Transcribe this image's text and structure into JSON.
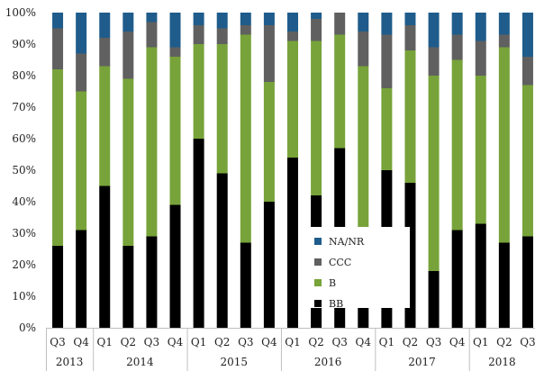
{
  "chart_data": {
    "type": "bar",
    "stacked": true,
    "title": "",
    "xlabel": "",
    "ylabel": "",
    "ylim": [
      0,
      100
    ],
    "yticks": [
      "0%",
      "10%",
      "20%",
      "30%",
      "40%",
      "50%",
      "60%",
      "70%",
      "80%",
      "90%",
      "100%"
    ],
    "categories": [
      "Q3",
      "Q4",
      "Q1",
      "Q2",
      "Q3",
      "Q4",
      "Q1",
      "Q2",
      "Q3",
      "Q4",
      "Q1",
      "Q2",
      "Q3",
      "Q4",
      "Q1",
      "Q2",
      "Q3",
      "Q4",
      "Q1",
      "Q2",
      "Q3"
    ],
    "year_groups": [
      {
        "label": "2013",
        "count": 2
      },
      {
        "label": "2014",
        "count": 4
      },
      {
        "label": "2015",
        "count": 4
      },
      {
        "label": "2016",
        "count": 4
      },
      {
        "label": "2017",
        "count": 4
      },
      {
        "label": "2018",
        "count": 3
      }
    ],
    "series": [
      {
        "name": "BB",
        "color": "#000000",
        "values": [
          26,
          31,
          45,
          26,
          29,
          39,
          60,
          49,
          27,
          40,
          54,
          42,
          57,
          30,
          50,
          46,
          18,
          31,
          33,
          27,
          29
        ]
      },
      {
        "name": "B",
        "color": "#77a33a",
        "values": [
          56,
          44,
          38,
          53,
          60,
          47,
          30,
          41,
          66,
          38,
          37,
          49,
          36,
          53,
          26,
          42,
          62,
          54,
          47,
          62,
          48
        ]
      },
      {
        "name": "CCC",
        "color": "#606060",
        "values": [
          13,
          12,
          9,
          15,
          8,
          3,
          6,
          5,
          3,
          18,
          3,
          7,
          7,
          11,
          17,
          8,
          9,
          8,
          11,
          4,
          9
        ]
      },
      {
        "name": "NA/NR",
        "color": "#1f5c8b",
        "values": [
          5,
          13,
          8,
          6,
          3,
          11,
          4,
          5,
          4,
          4,
          6,
          2,
          0,
          6,
          7,
          4,
          11,
          7,
          9,
          7,
          14
        ]
      }
    ],
    "legend": {
      "placement": "inside-center-right",
      "order": [
        "NA/NR",
        "CCC",
        "B",
        "BB"
      ]
    },
    "grid": false
  }
}
